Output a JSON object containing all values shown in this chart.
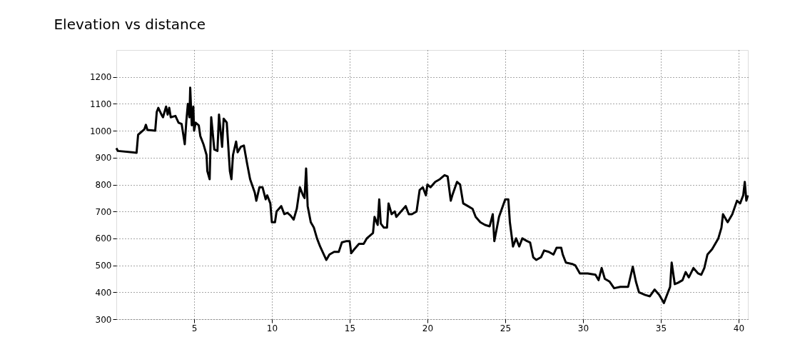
{
  "chart_data": {
    "type": "line",
    "title": "Elevation vs distance",
    "x": [
      0,
      0.1,
      1,
      1.3,
      1.4,
      1.8,
      1.9,
      2.0,
      2.5,
      2.6,
      2.7,
      2.9,
      3.0,
      3.2,
      3.3,
      3.4,
      3.5,
      3.8,
      4.0,
      4.2,
      4.4,
      4.5,
      4.6,
      4.7,
      4.75,
      4.85,
      4.95,
      5.0,
      5.1,
      5.3,
      5.4,
      5.6,
      5.8,
      5.85,
      6.0,
      6.1,
      6.3,
      6.5,
      6.6,
      6.8,
      6.9,
      7.1,
      7.3,
      7.4,
      7.5,
      7.7,
      7.8,
      8.0,
      8.2,
      8.4,
      8.6,
      8.9,
      9.0,
      9.2,
      9.4,
      9.6,
      9.7,
      9.9,
      10.0,
      10.2,
      10.3,
      10.6,
      10.8,
      11.0,
      11.2,
      11.4,
      11.6,
      11.8,
      12.0,
      12.1,
      12.2,
      12.3,
      12.5,
      12.7,
      12.9,
      13.1,
      13.3,
      13.5,
      13.7,
      14.0,
      14.3,
      14.5,
      14.8,
      15.0,
      15.1,
      15.3,
      15.6,
      15.9,
      16.1,
      16.5,
      16.6,
      16.8,
      16.9,
      17.0,
      17.2,
      17.4,
      17.5,
      17.7,
      17.9,
      18.0,
      18.3,
      18.6,
      18.8,
      19.0,
      19.3,
      19.5,
      19.7,
      19.9,
      20.0,
      20.2,
      20.5,
      20.8,
      21.1,
      21.3,
      21.5,
      21.6,
      21.9,
      22.1,
      22.3,
      22.6,
      22.9,
      23.1,
      23.4,
      23.7,
      24.0,
      24.2,
      24.3,
      24.6,
      25.0,
      25.2,
      25.3,
      25.5,
      25.7,
      25.9,
      26.1,
      26.4,
      26.6,
      26.8,
      27.0,
      27.3,
      27.5,
      27.8,
      28.1,
      28.3,
      28.6,
      28.7,
      28.9,
      29.3,
      29.5,
      29.8,
      30.3,
      30.8,
      31.0,
      31.2,
      31.4,
      31.7,
      32.0,
      32.4,
      32.7,
      32.9,
      33.2,
      33.4,
      33.6,
      34.0,
      34.3,
      34.6,
      34.9,
      35.1,
      35.2,
      35.4,
      35.6,
      35.7,
      35.9,
      36.1,
      36.4,
      36.6,
      36.8,
      37.1,
      37.4,
      37.6,
      37.8,
      38.0,
      38.3,
      38.5,
      38.7,
      38.9,
      39.0,
      39.3,
      39.6,
      39.9,
      40.1,
      40.3,
      40.4,
      40.5,
      40.6
    ],
    "series": [
      {
        "color": "#000000",
        "values": [
          935,
          925,
          920,
          918,
          985,
          1005,
          1022,
          1003,
          1000,
          1070,
          1085,
          1060,
          1050,
          1090,
          1060,
          1085,
          1050,
          1055,
          1030,
          1025,
          950,
          1035,
          1100,
          1050,
          1160,
          1020,
          1090,
          1000,
          1030,
          1020,
          980,
          950,
          910,
          850,
          820,
          1050,
          930,
          925,
          1060,
          940,
          1045,
          1030,
          850,
          820,
          910,
          960,
          920,
          940,
          945,
          880,
          820,
          770,
          740,
          790,
          790,
          745,
          760,
          730,
          660,
          660,
          700,
          720,
          690,
          695,
          685,
          670,
          710,
          790,
          760,
          750,
          860,
          720,
          660,
          640,
          600,
          570,
          545,
          520,
          540,
          550,
          550,
          585,
          590,
          590,
          545,
          560,
          580,
          580,
          600,
          620,
          680,
          650,
          745,
          655,
          640,
          640,
          730,
          690,
          700,
          680,
          700,
          720,
          690,
          690,
          700,
          780,
          790,
          760,
          800,
          790,
          810,
          820,
          835,
          830,
          740,
          760,
          810,
          800,
          730,
          720,
          710,
          680,
          660,
          650,
          645,
          690,
          590,
          680,
          745,
          745,
          660,
          570,
          600,
          570,
          600,
          590,
          585,
          530,
          520,
          530,
          555,
          550,
          540,
          565,
          565,
          540,
          510,
          505,
          500,
          470,
          470,
          465,
          445,
          490,
          450,
          440,
          415,
          420,
          420,
          420,
          495,
          440,
          400,
          390,
          385,
          410,
          390,
          370,
          360,
          390,
          420,
          510,
          430,
          435,
          445,
          475,
          455,
          490,
          470,
          465,
          490,
          540,
          560,
          580,
          600,
          640,
          690,
          660,
          690,
          740,
          730,
          760,
          810,
          740,
          760
        ]
      }
    ],
    "xlim": [
      0,
      40.6
    ],
    "ylim": [
      300,
      1300
    ],
    "xticks": [
      5,
      10,
      15,
      20,
      25,
      30,
      35,
      40
    ],
    "yticks": [
      300,
      400,
      500,
      600,
      700,
      800,
      900,
      1000,
      1100,
      1200
    ],
    "grid": true,
    "line_style": "solid",
    "marker": "none"
  }
}
